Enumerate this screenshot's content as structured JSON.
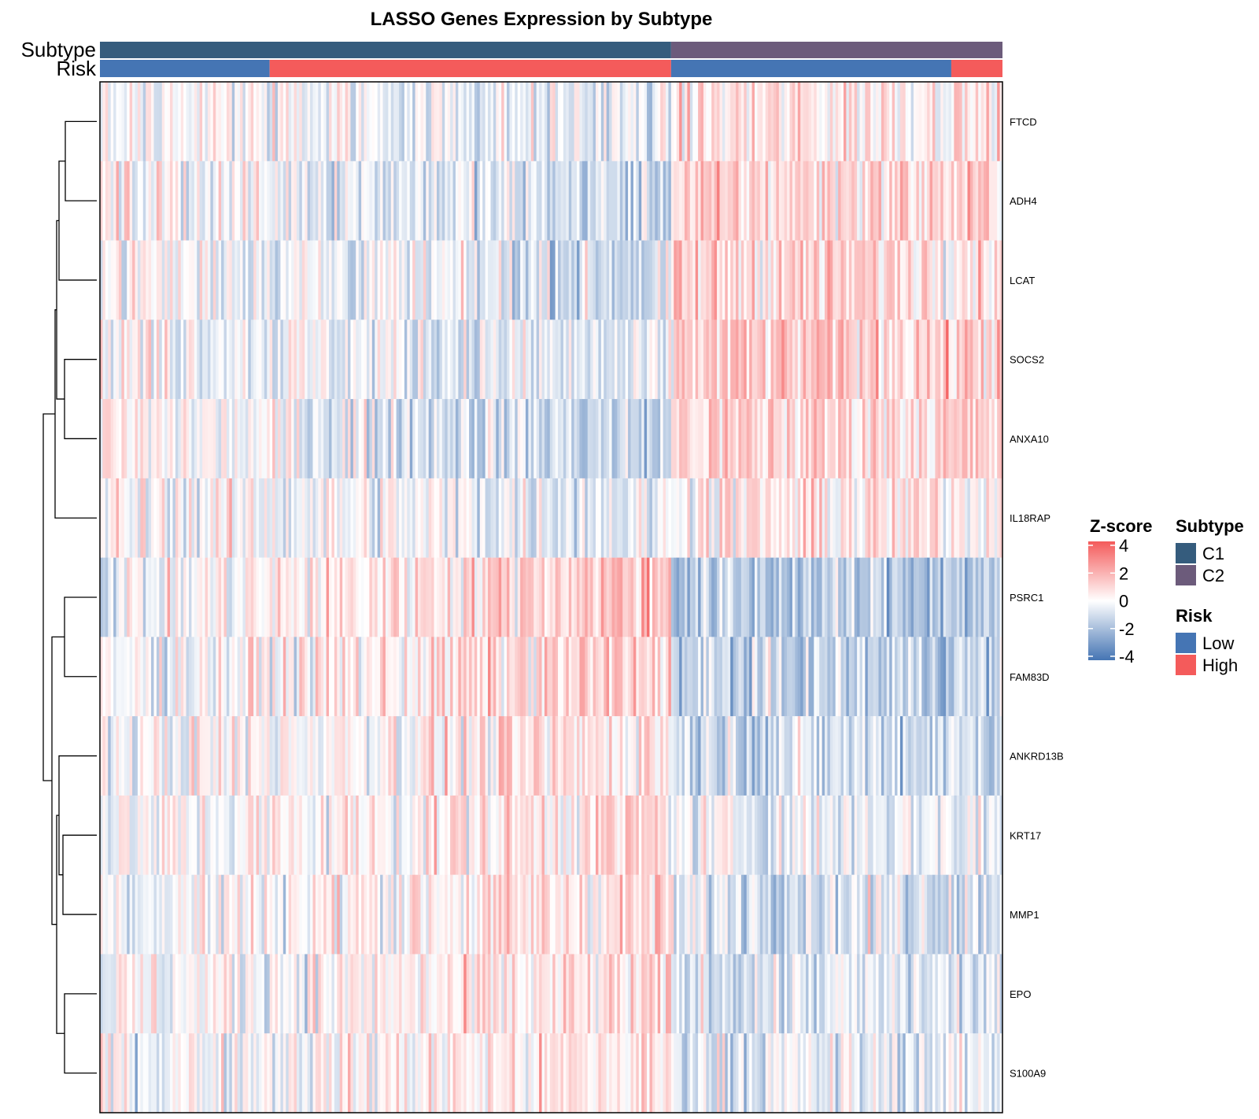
{
  "chart_data": {
    "type": "heatmap",
    "title": "LASSO Genes Expression by Subtype",
    "genes": [
      "FTCD",
      "ADH4",
      "LCAT",
      "SOCS2",
      "ANXA10",
      "IL18RAP",
      "PSRC1",
      "FAM83D",
      "ANKRD13B",
      "KRT17",
      "MMP1",
      "EPO",
      "S100A9"
    ],
    "annotation_tracks": [
      {
        "label": "Subtype",
        "segments": [
          {
            "value": "C1",
            "samples": 212
          },
          {
            "value": "C2",
            "samples": 123
          }
        ]
      },
      {
        "label": "Risk",
        "segments": [
          {
            "value": "Low",
            "samples": 63
          },
          {
            "value": "High",
            "samples": 149
          },
          {
            "value": "Low",
            "samples": 104
          },
          {
            "value": "High",
            "samples": 19
          }
        ]
      }
    ],
    "n_samples": 335,
    "row_mean_by_subtype": {
      "C1": [
        -0.4,
        -0.8,
        -0.7,
        -0.6,
        -0.9,
        -0.3,
        1.1,
        0.8,
        0.5,
        0.6,
        0.6,
        0.4,
        0.4
      ],
      "C2": [
        0.6,
        1.0,
        1.0,
        1.2,
        1.0,
        0.5,
        -1.5,
        -1.3,
        -0.9,
        -0.3,
        -0.6,
        -0.7,
        -0.5
      ]
    },
    "color_scale": {
      "label": "Z-score",
      "range": [
        -4,
        4
      ],
      "ticks": [
        "4",
        "2",
        "0",
        "-2",
        "-4"
      ],
      "colors": {
        "low": "#4575b4",
        "mid": "#ffffff",
        "high": "#f45b5b"
      }
    },
    "legends": [
      {
        "title": "Z-score"
      },
      {
        "title": "Subtype",
        "items": [
          {
            "label": "C1",
            "color": "#355c7d"
          },
          {
            "label": "C2",
            "color": "#6c5b7b"
          }
        ]
      },
      {
        "title": "Risk",
        "items": [
          {
            "label": "Low",
            "color": "#4575b4"
          },
          {
            "label": "High",
            "color": "#f45b5b"
          }
        ]
      }
    ],
    "legend_position": "right",
    "row_dendrogram": "left"
  }
}
